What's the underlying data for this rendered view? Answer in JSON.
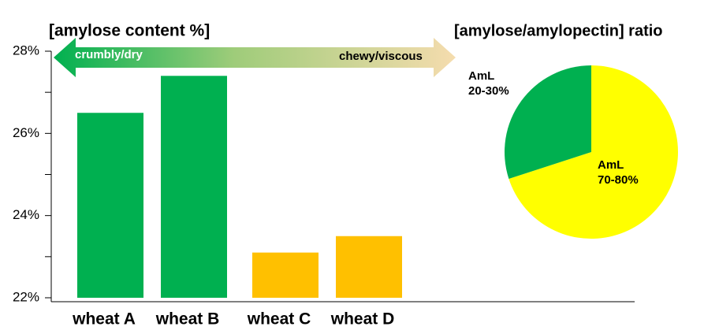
{
  "chart_data": [
    {
      "type": "bar",
      "title": "[amylose content %]",
      "categories": [
        "wheat A",
        "wheat B",
        "wheat C",
        "wheat D"
      ],
      "values": [
        26.5,
        27.4,
        23.1,
        23.5
      ],
      "colors": [
        "#00b050",
        "#00b050",
        "#ffc000",
        "#ffc000"
      ],
      "ylim": [
        22,
        28
      ],
      "yticks": [
        {
          "value": 22,
          "label": "22%"
        },
        {
          "value": 24,
          "label": "24%"
        },
        {
          "value": 26,
          "label": "26%"
        },
        {
          "value": 28,
          "label": "28%"
        }
      ],
      "minor_yticks": [
        23,
        25,
        27
      ],
      "annotations": [
        "crumbly/dry",
        "chewy/viscous"
      ]
    },
    {
      "type": "pie",
      "title": "[amylose/amylopectin]  ratio",
      "categories": [
        "AmL\n70-80%",
        "AmL\n20-30%"
      ],
      "values": [
        70,
        30
      ],
      "colors": [
        "#ffff00",
        "#00b050"
      ]
    }
  ]
}
